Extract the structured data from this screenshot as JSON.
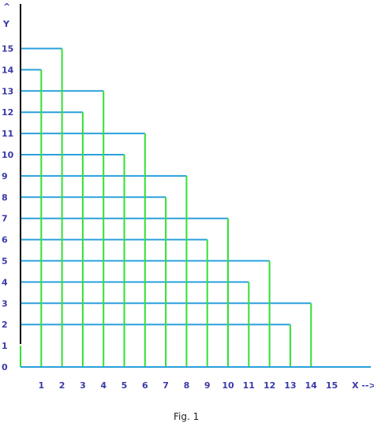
{
  "chart_data": {
    "type": "line",
    "title": "",
    "caption": "Fig. 1",
    "x_axis": {
      "label": "X -->",
      "ticks": [
        "1",
        "2",
        "3",
        "4",
        "5",
        "6",
        "7",
        "8",
        "9",
        "10",
        "11",
        "12",
        "13",
        "14",
        "15"
      ]
    },
    "y_axis": {
      "label": "Y",
      "arrow": "^",
      "ticks": [
        "0",
        "1",
        "2",
        "3",
        "4",
        "5",
        "6",
        "7",
        "8",
        "9",
        "10",
        "11",
        "12",
        "13",
        "14",
        "15"
      ]
    },
    "segments": [
      {
        "y": 15,
        "x": 2
      },
      {
        "y": 14,
        "x": 1
      },
      {
        "y": 13,
        "x": 4
      },
      {
        "y": 12,
        "x": 3
      },
      {
        "y": 11,
        "x": 6
      },
      {
        "y": 10,
        "x": 5
      },
      {
        "y": 9,
        "x": 8
      },
      {
        "y": 8,
        "x": 7
      },
      {
        "y": 7,
        "x": 10
      },
      {
        "y": 6,
        "x": 9
      },
      {
        "y": 5,
        "x": 12
      },
      {
        "y": 4,
        "x": 11
      },
      {
        "y": 3,
        "x": 14
      },
      {
        "y": 2,
        "x": 13
      },
      {
        "y": 1,
        "x": 0
      }
    ],
    "colors": {
      "horizontal": "#2aa0dc",
      "vertical": "#33e033",
      "y_axis": "#000000",
      "x_axis": "#2aa0dc",
      "text": "#3a3aa8"
    },
    "grid": false
  }
}
